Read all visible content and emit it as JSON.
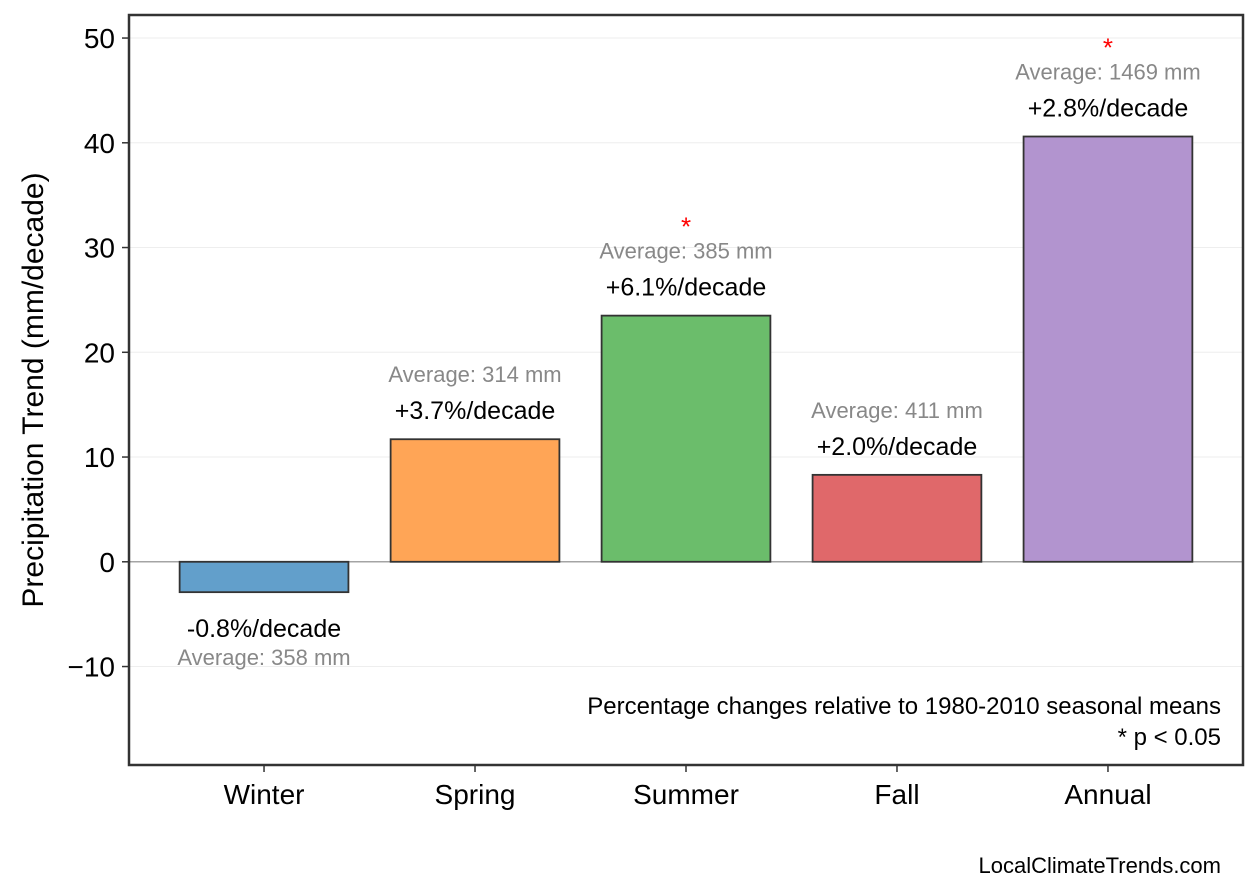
{
  "chart_data": {
    "type": "bar",
    "title": "",
    "xlabel": "",
    "ylabel": "Precipitation Trend (mm/decade)",
    "categories": [
      "Winter",
      "Spring",
      "Summer",
      "Fall",
      "Annual"
    ],
    "values": [
      -2.9,
      11.7,
      23.5,
      8.3,
      40.6
    ],
    "colors": [
      "#629fcb",
      "#ffa556",
      "#6bbd6b",
      "#e0686a",
      "#b294cf"
    ],
    "pct_labels": [
      "-0.8%/decade",
      "+3.7%/decade",
      "+6.1%/decade",
      "+2.0%/decade",
      "+2.8%/decade"
    ],
    "avg_labels": [
      "Average: 358 mm",
      "Average: 314 mm",
      "Average: 385 mm",
      "Average: 411 mm",
      "Average: 1469 mm"
    ],
    "significant": [
      false,
      false,
      true,
      false,
      true
    ],
    "significance_marker": "*",
    "ylim": [
      -19.4,
      52.2
    ],
    "yticks": [
      -10,
      0,
      10,
      20,
      30,
      40,
      50
    ],
    "ytick_labels": [
      "−10",
      "0",
      "10",
      "20",
      "30",
      "40",
      "50"
    ],
    "grid": true,
    "notes": [
      "Percentage changes relative to 1980-2010 seasonal means",
      "* p < 0.05"
    ],
    "credit": "LocalClimateTrends.com"
  }
}
